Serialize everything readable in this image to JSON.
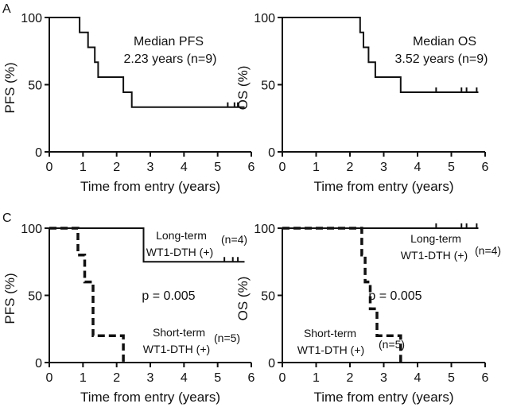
{
  "panel_labels": [
    "A",
    "C"
  ],
  "chart_data": [
    {
      "type": "line",
      "panel": "A",
      "ylabel": "PFS (%)",
      "xlabel": "Time from entry (years)",
      "xlim": [
        0,
        6
      ],
      "ylim": [
        0,
        100
      ],
      "xticks": [
        0,
        1,
        2,
        3,
        4,
        5,
        6
      ],
      "yticks": [
        0,
        50,
        100
      ],
      "annotations": [
        "Median PFS",
        "2.23 years (n=9)"
      ],
      "series": [
        {
          "style": "solid",
          "steps": [
            [
              0,
              100
            ],
            [
              0.9,
              100
            ],
            [
              0.9,
              88.9
            ],
            [
              1.15,
              88.9
            ],
            [
              1.15,
              77.8
            ],
            [
              1.35,
              77.8
            ],
            [
              1.35,
              66.7
            ],
            [
              1.45,
              66.7
            ],
            [
              1.45,
              55.6
            ],
            [
              2.2,
              55.6
            ],
            [
              2.2,
              44.4
            ],
            [
              2.45,
              44.4
            ],
            [
              2.45,
              33.3
            ],
            [
              5.8,
              33.3
            ]
          ],
          "censored": [
            [
              5.3,
              33.3
            ],
            [
              5.5,
              33.3
            ],
            [
              5.6,
              33.3
            ]
          ]
        }
      ]
    },
    {
      "type": "line",
      "panel": "A-right",
      "ylabel": "OS (%)",
      "xlabel": "Time from entry (years)",
      "xlim": [
        0,
        6
      ],
      "ylim": [
        0,
        100
      ],
      "xticks": [
        0,
        1,
        2,
        3,
        4,
        5,
        6
      ],
      "yticks": [
        0,
        50,
        100
      ],
      "annotations": [
        "Median OS",
        "3.52 years (n=9)"
      ],
      "series": [
        {
          "style": "solid",
          "steps": [
            [
              0,
              100
            ],
            [
              2.3,
              100
            ],
            [
              2.3,
              88.9
            ],
            [
              2.4,
              88.9
            ],
            [
              2.4,
              77.8
            ],
            [
              2.55,
              77.8
            ],
            [
              2.55,
              66.7
            ],
            [
              2.75,
              66.7
            ],
            [
              2.75,
              55.6
            ],
            [
              3.5,
              55.6
            ],
            [
              3.5,
              44.4
            ],
            [
              5.8,
              44.4
            ]
          ],
          "censored": [
            [
              4.55,
              44.4
            ],
            [
              5.3,
              44.4
            ],
            [
              5.45,
              44.4
            ],
            [
              5.75,
              44.4
            ]
          ]
        }
      ]
    },
    {
      "type": "line",
      "panel": "C",
      "ylabel": "PFS (%)",
      "xlabel": "Time from entry (years)",
      "xlim": [
        0,
        6
      ],
      "ylim": [
        0,
        100
      ],
      "xticks": [
        0,
        1,
        2,
        3,
        4,
        5,
        6
      ],
      "yticks": [
        0,
        50,
        100
      ],
      "annotations": [
        "p = 0.005"
      ],
      "series": [
        {
          "name": "Long-term WT1-DTH (+)",
          "n": "(n=4)",
          "style": "solid",
          "steps": [
            [
              0,
              100
            ],
            [
              2.8,
              100
            ],
            [
              2.8,
              75
            ],
            [
              5.8,
              75
            ]
          ],
          "censored": [
            [
              5.2,
              75
            ],
            [
              5.45,
              75
            ],
            [
              5.6,
              75
            ]
          ]
        },
        {
          "name": "Short-term WT1-DTH (+)",
          "n": "(n=5)",
          "style": "dashed",
          "steps": [
            [
              0,
              100
            ],
            [
              0.85,
              100
            ],
            [
              0.85,
              80
            ],
            [
              1.05,
              80
            ],
            [
              1.05,
              60
            ],
            [
              1.3,
              60
            ],
            [
              1.3,
              20
            ],
            [
              2.2,
              20
            ],
            [
              2.2,
              0
            ]
          ],
          "censored": []
        }
      ]
    },
    {
      "type": "line",
      "panel": "C-right",
      "ylabel": "OS (%)",
      "xlabel": "Time from entry (years)",
      "xlim": [
        0,
        6
      ],
      "ylim": [
        0,
        100
      ],
      "xticks": [
        0,
        1,
        2,
        3,
        4,
        5,
        6
      ],
      "yticks": [
        0,
        50,
        100
      ],
      "annotations": [
        "p = 0.005"
      ],
      "series": [
        {
          "name": "Long-term WT1-DTH (+)",
          "n": "(n=4)",
          "style": "solid",
          "steps": [
            [
              0,
              100
            ],
            [
              5.8,
              100
            ]
          ],
          "censored": [
            [
              4.55,
              100
            ],
            [
              5.3,
              100
            ],
            [
              5.45,
              100
            ],
            [
              5.75,
              100
            ]
          ]
        },
        {
          "name": "Short-term WT1-DTH (+)",
          "n": "(n=5)",
          "style": "dashed",
          "steps": [
            [
              0,
              100
            ],
            [
              2.35,
              100
            ],
            [
              2.35,
              80
            ],
            [
              2.45,
              80
            ],
            [
              2.45,
              60
            ],
            [
              2.6,
              60
            ],
            [
              2.6,
              40
            ],
            [
              2.8,
              40
            ],
            [
              2.8,
              20
            ],
            [
              3.5,
              20
            ],
            [
              3.5,
              0
            ]
          ],
          "censored": []
        }
      ]
    }
  ]
}
